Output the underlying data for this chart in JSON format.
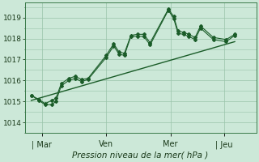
{
  "background_color": "#cce8d8",
  "plot_bg_color": "#cce8d8",
  "grid_color": "#99c4aa",
  "line_color": "#1a5c28",
  "xlabel": "Pression niveau de la mer( hPa )",
  "ylim": [
    1013.5,
    1019.7
  ],
  "yticks": [
    1014,
    1015,
    1016,
    1017,
    1018,
    1019
  ],
  "xtick_labels": [
    "| Mar",
    "Ven",
    "Mer",
    "| Jeu"
  ],
  "xtick_positions": [
    0.5,
    3.5,
    6.5,
    9.0
  ],
  "xlim": [
    -0.3,
    10.5
  ],
  "series1_x": [
    0.0,
    0.35,
    0.65,
    0.95,
    1.15,
    1.4,
    1.75,
    2.05,
    2.35,
    2.65,
    3.5,
    3.85,
    4.1,
    4.35,
    4.65,
    4.95,
    5.25,
    5.55,
    6.4,
    6.65,
    6.85,
    7.1,
    7.35,
    7.65,
    7.9,
    8.5,
    9.1,
    9.5
  ],
  "series1_y": [
    1015.3,
    1015.1,
    1014.9,
    1015.05,
    1015.15,
    1015.85,
    1016.1,
    1016.2,
    1016.05,
    1016.1,
    1017.2,
    1017.75,
    1017.35,
    1017.3,
    1018.15,
    1018.2,
    1018.2,
    1017.8,
    1019.4,
    1019.05,
    1018.35,
    1018.3,
    1018.2,
    1018.05,
    1018.6,
    1018.05,
    1017.95,
    1018.2
  ],
  "series2_x": [
    0.0,
    0.35,
    0.65,
    0.95,
    1.15,
    1.4,
    1.75,
    2.05,
    2.35,
    2.65,
    3.5,
    3.85,
    4.1,
    4.35,
    4.65,
    4.95,
    5.25,
    5.55,
    6.4,
    6.65,
    6.85,
    7.1,
    7.35,
    7.65,
    7.9,
    8.5,
    9.1,
    9.5
  ],
  "series2_y": [
    1015.3,
    1015.05,
    1014.85,
    1014.85,
    1015.0,
    1015.75,
    1016.0,
    1016.1,
    1015.95,
    1016.05,
    1017.1,
    1017.65,
    1017.25,
    1017.2,
    1018.1,
    1018.1,
    1018.1,
    1017.7,
    1019.35,
    1018.95,
    1018.25,
    1018.2,
    1018.1,
    1017.95,
    1018.5,
    1017.95,
    1017.85,
    1018.15
  ],
  "trend_x": [
    0.0,
    9.5
  ],
  "trend_y": [
    1015.05,
    1017.85
  ]
}
